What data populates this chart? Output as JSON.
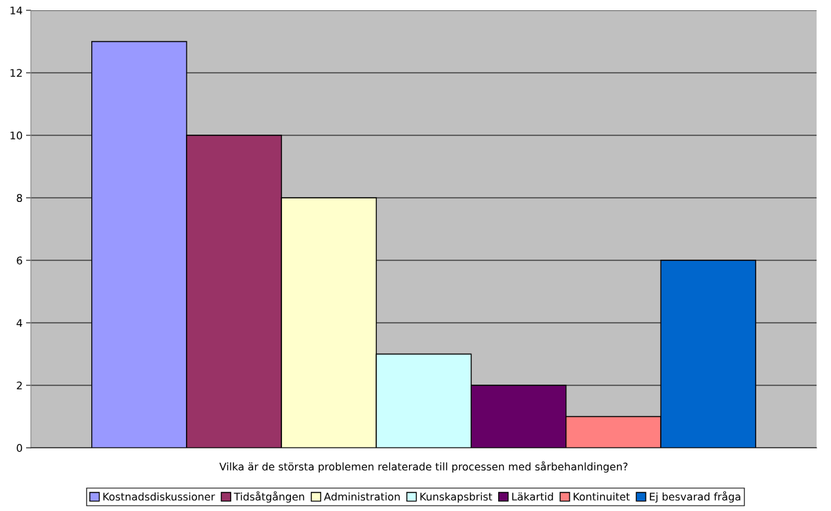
{
  "chart_data": {
    "type": "bar",
    "categories": [
      "Vilka är de största problemen relaterade till processen med sårbehanldingen?"
    ],
    "series": [
      {
        "name": "Kostnadsdiskussioner",
        "color": "#9999ff",
        "values": [
          13
        ]
      },
      {
        "name": "Tidsåtgången",
        "color": "#993366",
        "values": [
          10
        ]
      },
      {
        "name": "Administration",
        "color": "#ffffcc",
        "values": [
          8
        ]
      },
      {
        "name": "Kunskapsbrist",
        "color": "#ccffff",
        "values": [
          3
        ]
      },
      {
        "name": "Läkartid",
        "color": "#660066",
        "values": [
          2
        ]
      },
      {
        "name": "Kontinuitet",
        "color": "#ff8080",
        "values": [
          1
        ]
      },
      {
        "name": "Ej besvarad fråga",
        "color": "#0066cc",
        "values": [
          6
        ]
      }
    ],
    "ylim": [
      0,
      14
    ],
    "yticks": [
      0,
      2,
      4,
      6,
      8,
      10,
      12,
      14
    ],
    "grid": "y",
    "legend": "bottom"
  }
}
